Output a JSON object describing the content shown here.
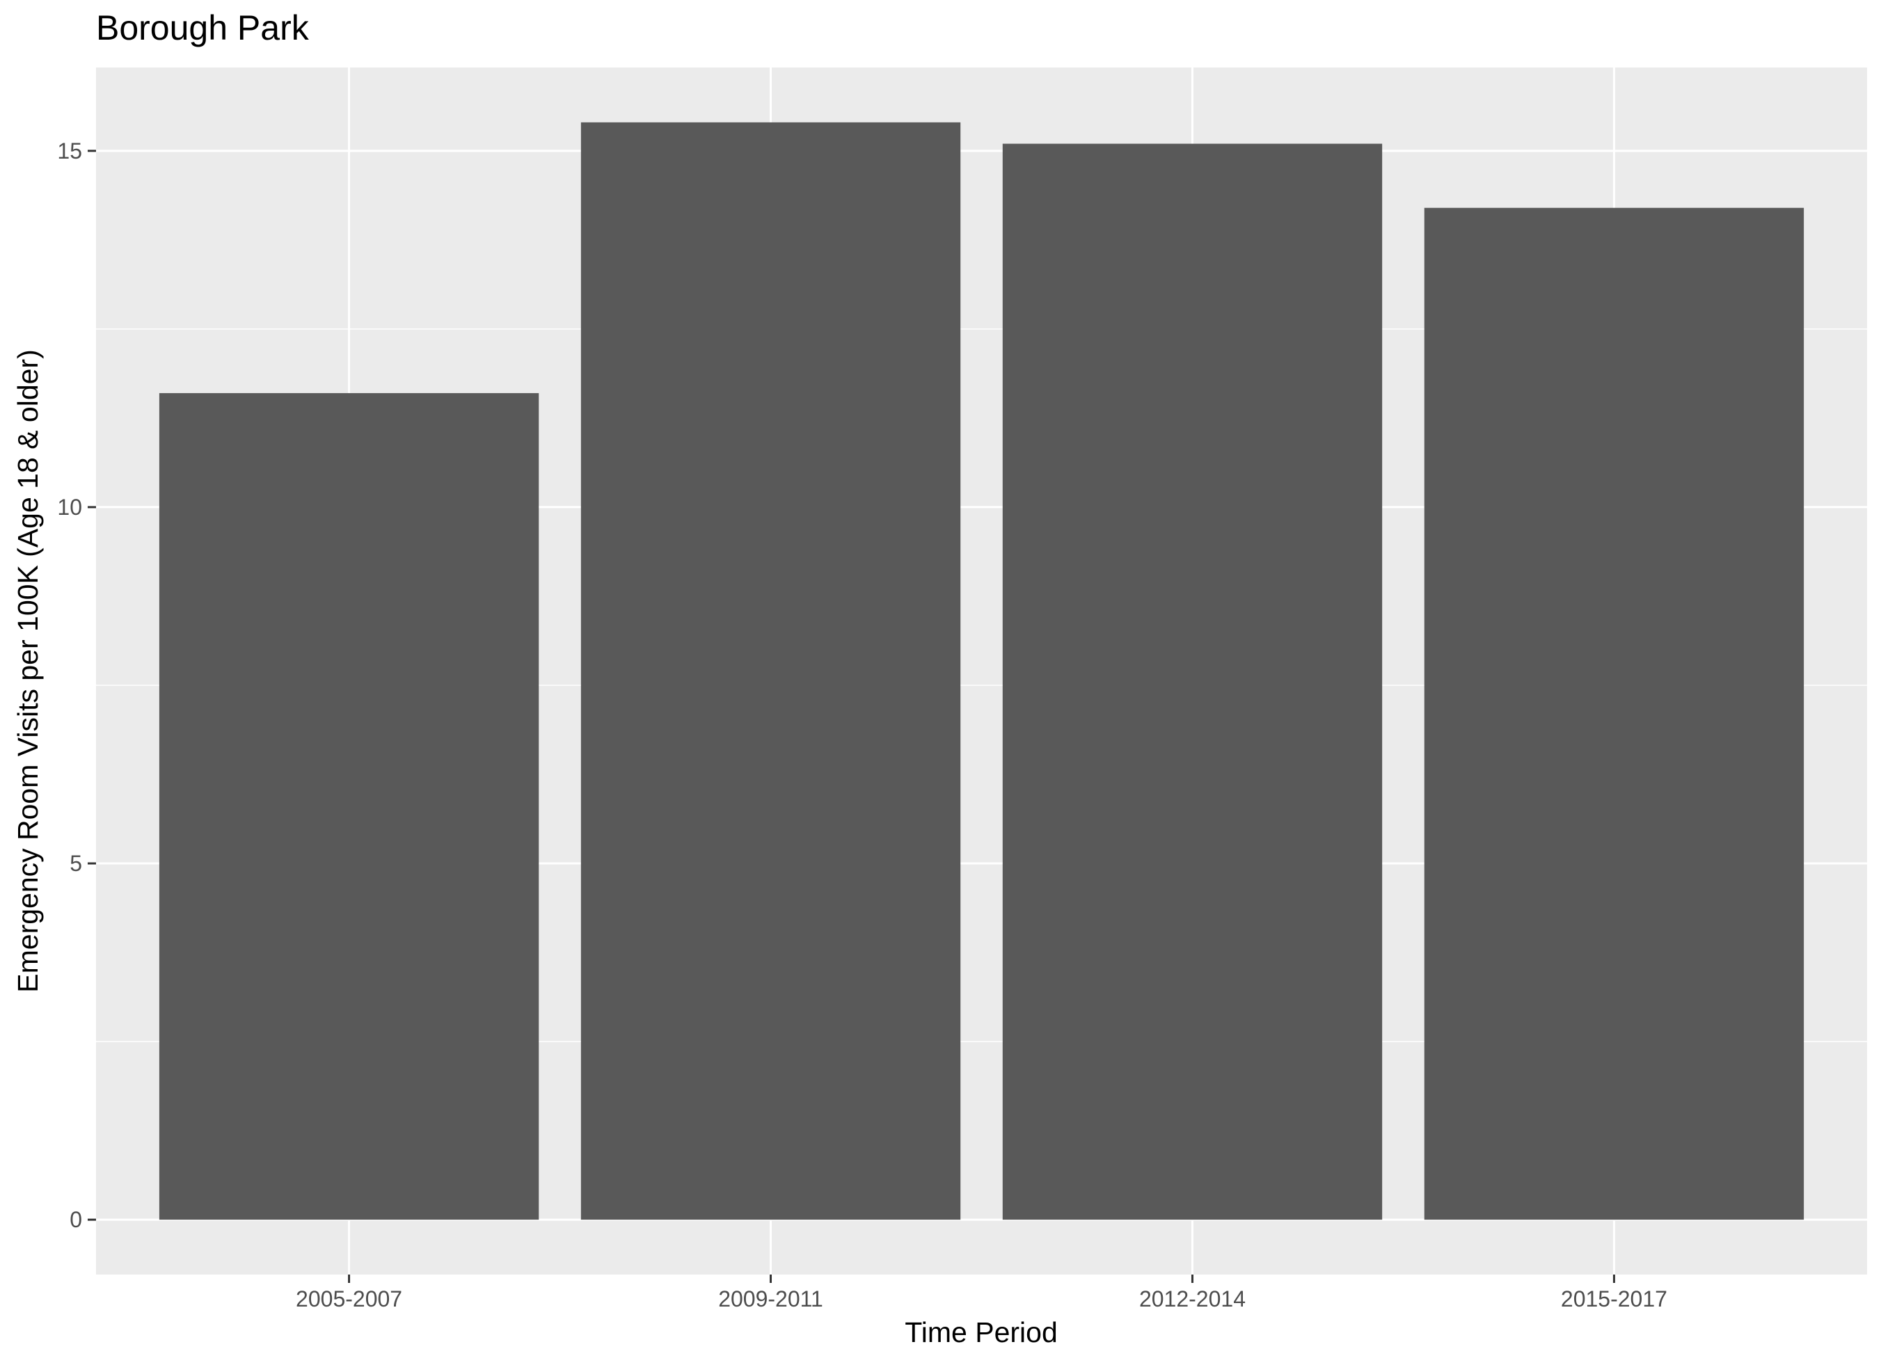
{
  "chart_data": {
    "type": "bar",
    "title": "Borough Park",
    "xlabel": "Time Period",
    "ylabel": "Emergency Room Visits per 100K (Age 18 & older)",
    "categories": [
      "2005-2007",
      "2009-2011",
      "2012-2014",
      "2015-2017"
    ],
    "values": [
      11.6,
      15.4,
      15.1,
      14.2
    ],
    "ylim": [
      -0.77,
      16.17
    ],
    "yticks": [
      0,
      5,
      10,
      15
    ],
    "ytick_labels": [
      "0",
      "5",
      "10",
      "15"
    ],
    "grid": true,
    "legend": "none",
    "colors": {
      "bar": "#595959",
      "panel": "#ebebeb",
      "grid": "#ffffff",
      "tick": "#333333",
      "tick_label": "#4d4d4d"
    }
  }
}
